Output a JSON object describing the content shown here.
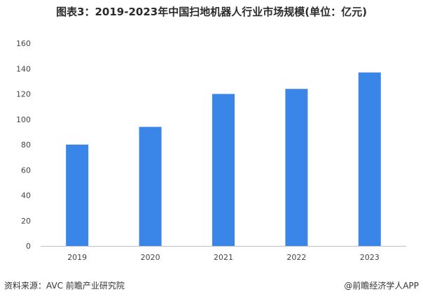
{
  "chart_data": {
    "type": "bar",
    "title": "图表3：2019-2023年中国扫地机器人行业市场规模(单位：亿元)",
    "categories": [
      "2019",
      "2020",
      "2021",
      "2022",
      "2023"
    ],
    "values": [
      80,
      94,
      120,
      124,
      137
    ],
    "ylim": [
      0,
      160
    ],
    "yticks": [
      0,
      20,
      40,
      60,
      80,
      100,
      120,
      140,
      160
    ],
    "bar_color": "#3a86e8",
    "grid": false
  },
  "footer": {
    "source": "资料来源：AVC 前瞻产业研究院",
    "brand": "@前瞻经济学人APP"
  }
}
